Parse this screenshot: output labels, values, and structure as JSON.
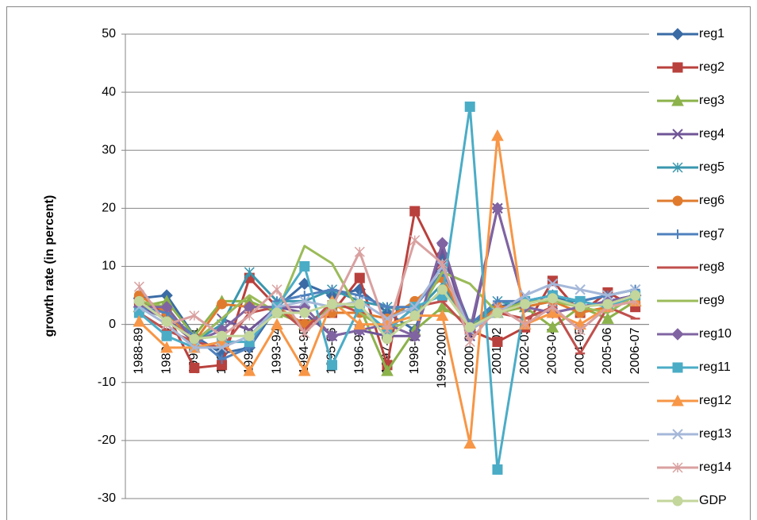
{
  "chart_data": {
    "type": "line",
    "ylabel": "growth rate (in percent)",
    "categories": [
      "1988-89",
      "1989-90",
      "1990-91",
      "1991-92",
      "1992-93",
      "1993-94",
      "1994-95",
      "1995-96",
      "1996-97",
      "1997-98",
      "1998-99",
      "1999-2000",
      "2000-01",
      "2001-02",
      "2002-03",
      "2003-04",
      "2004-05",
      "2005-06",
      "2006-07"
    ],
    "ylim": [
      -30,
      50
    ],
    "yticks": [
      -30,
      -20,
      -10,
      0,
      10,
      20,
      30,
      40,
      50
    ],
    "grid": true,
    "legend": "right",
    "series": [
      {
        "name": "reg1",
        "color": "#3A6BA5",
        "marker": "diamond",
        "values": [
          4.5,
          5,
          -2,
          -5,
          -4,
          3,
          7,
          5,
          6,
          2,
          -1,
          12,
          0,
          3,
          4,
          5,
          3,
          4,
          5
        ]
      },
      {
        "name": "reg2",
        "color": "#B9413D",
        "marker": "square",
        "values": [
          4,
          2,
          -7.5,
          -7,
          8,
          3,
          0,
          2,
          8,
          -7,
          19.5,
          10,
          -1,
          -3,
          -0.5,
          7.5,
          2,
          5.5,
          3
        ]
      },
      {
        "name": "reg3",
        "color": "#8CB24B",
        "marker": "triangle",
        "values": [
          3,
          4,
          -2,
          4,
          4,
          2,
          0,
          3,
          3,
          -8,
          -1,
          3,
          0,
          2,
          3,
          -0.5,
          3,
          1,
          4
        ]
      },
      {
        "name": "reg4",
        "color": "#6F5596",
        "marker": "x",
        "values": [
          3,
          1,
          -3,
          1,
          -1,
          3,
          2,
          -2,
          -1,
          -2,
          -2,
          13,
          -2,
          20,
          3,
          2,
          3,
          4,
          5
        ]
      },
      {
        "name": "reg5",
        "color": "#3A97AE",
        "marker": "star",
        "values": [
          3,
          2,
          -3,
          0,
          9,
          4,
          4,
          6,
          4,
          3,
          2,
          7,
          -1,
          4,
          3,
          4,
          4,
          5,
          6
        ]
      },
      {
        "name": "reg6",
        "color": "#E07B2E",
        "marker": "circle",
        "values": [
          5,
          2,
          -3,
          3.5,
          3,
          3,
          0,
          2,
          2,
          1,
          4,
          8,
          -1,
          3,
          3,
          4,
          2,
          3,
          4
        ]
      },
      {
        "name": "reg7",
        "color": "#4F81BD",
        "marker": "plus",
        "values": [
          3,
          2,
          -2,
          -6,
          -4,
          4,
          5,
          6,
          5,
          3,
          3,
          9,
          0,
          4,
          4,
          5,
          4,
          5,
          6
        ]
      },
      {
        "name": "reg8",
        "color": "#C0504D",
        "marker": "dash",
        "values": [
          2,
          -1,
          -3,
          -4,
          2,
          3,
          -1,
          4,
          2,
          -1,
          3,
          4,
          -1,
          2,
          1,
          3,
          -5,
          3,
          1
        ]
      },
      {
        "name": "reg9",
        "color": "#9BBB59",
        "marker": "none",
        "values": [
          4,
          3,
          -3,
          1,
          5,
          2,
          13.5,
          10.5,
          2,
          -1,
          1,
          9,
          7,
          2,
          4,
          4,
          3,
          2,
          5
        ]
      },
      {
        "name": "reg10",
        "color": "#8064A2",
        "marker": "diamond",
        "values": [
          3,
          3,
          -3,
          -1,
          3,
          3,
          3,
          -2,
          -1,
          0,
          -2,
          14,
          -1,
          20,
          3,
          2,
          3,
          4,
          5
        ]
      },
      {
        "name": "reg11",
        "color": "#4BACC6",
        "marker": "square",
        "values": [
          2,
          -2,
          -4,
          -3,
          -3,
          3,
          10,
          -7,
          3,
          -1,
          3,
          5,
          37.5,
          -25,
          4,
          5,
          4,
          3,
          5
        ]
      },
      {
        "name": "reg12",
        "color": "#F79646",
        "marker": "triangle",
        "values": [
          0.5,
          -4,
          -4,
          -3,
          -8,
          0,
          -8,
          4,
          0,
          0,
          1.5,
          1.5,
          -20.5,
          32.5,
          0,
          2,
          0,
          3,
          4
        ]
      },
      {
        "name": "reg13",
        "color": "#A5B8D9",
        "marker": "x",
        "values": [
          3,
          0,
          -4,
          -4,
          -2,
          3,
          4,
          3,
          4,
          1,
          3,
          10,
          -1,
          2,
          5,
          7,
          6,
          5,
          6
        ]
      },
      {
        "name": "reg14",
        "color": "#D9A1A0",
        "marker": "star",
        "values": [
          6.5,
          0,
          1.5,
          -2,
          1.5,
          6,
          -1.5,
          3,
          12.5,
          -1,
          14.5,
          10.5,
          -3,
          3,
          0,
          3,
          -1,
          3,
          4
        ]
      },
      {
        "name": "GDP",
        "color": "#C3D69B",
        "marker": "circle",
        "values": [
          4,
          0.5,
          -2.5,
          -2,
          -2,
          2,
          2,
          3.5,
          3.5,
          -2.5,
          1.5,
          6,
          -0.5,
          2,
          3.5,
          4.5,
          3,
          3.5,
          5
        ]
      }
    ]
  }
}
